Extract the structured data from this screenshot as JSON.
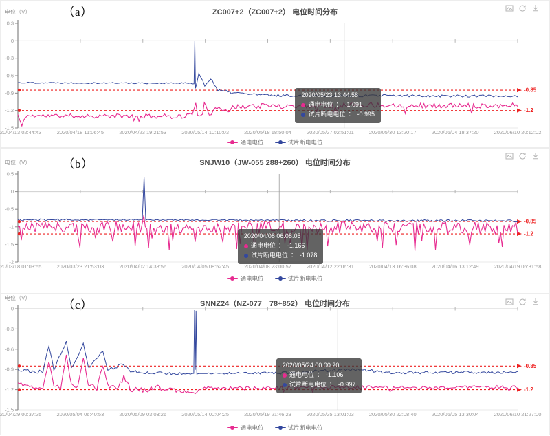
{
  "colon": "：",
  "toolbox": {
    "icons": [
      "save-image-icon",
      "restore-icon",
      "download-icon"
    ]
  },
  "chart_data": [
    {
      "panel_label": "（a）",
      "type": "line",
      "title": "ZC007+2（ZC007+2）  电位时间分布",
      "ylabel": "电位（V）",
      "ylim": [
        -1.5,
        0.3
      ],
      "yticks": [
        0.3,
        0,
        -0.3,
        -0.6,
        -0.9,
        -1.2,
        -1.5
      ],
      "xticklabels": [
        "2020/04/13 02:44:43",
        "2020/04/18 11:06:45",
        "2020/04/23 19:21:53",
        "2020/05/14 10:10:03",
        "2020/05/18 18:50:04",
        "2020/05/27 02:51:01",
        "2020/05/30 13:20:17",
        "2020/06/04 18:37:20",
        "2020/06/10 20:12:02"
      ],
      "grid": "zero-line",
      "legend_position": "bottom-center",
      "thresholds": [
        {
          "value": -0.85,
          "label": "-0.85",
          "color": "#ee2222"
        },
        {
          "value": -1.2,
          "label": "-1.2",
          "color": "#ee2222"
        }
      ],
      "series": [
        {
          "name": "通电电位",
          "color": "#e72b90",
          "seed": 11,
          "spike_prob": 0.02,
          "points": [
            [
              0,
              -1.27,
              0.035
            ],
            [
              0.008,
              -1.47,
              0.02
            ],
            [
              0.016,
              -1.29,
              0.035
            ],
            [
              0.335,
              -1.3,
              0.04
            ],
            [
              0.349,
              -1.26,
              0.05
            ],
            [
              0.356,
              -1.02,
              0.07
            ],
            [
              0.363,
              -1.38,
              0.09
            ],
            [
              0.373,
              -1.1,
              0.07
            ],
            [
              0.383,
              -1.33,
              0.06
            ],
            [
              0.395,
              -1.12,
              0.05
            ],
            [
              0.42,
              -1.19,
              0.05
            ],
            [
              0.45,
              -1.12,
              0.05
            ],
            [
              0.55,
              -1.12,
              0.045
            ],
            [
              0.7,
              -1.1,
              0.045
            ],
            [
              0.85,
              -1.12,
              0.045
            ],
            [
              1,
              -1.11,
              0.04
            ]
          ]
        },
        {
          "name": "试片断电电位",
          "color": "#34489e",
          "seed": 22,
          "spike_prob": 0,
          "points": [
            [
              0,
              -0.72,
              0.012
            ],
            [
              0.345,
              -0.73,
              0.012
            ],
            [
              0.3525,
              -0.74,
              0.004
            ],
            [
              0.354,
              0.0,
              0
            ],
            [
              0.3555,
              -0.82,
              0.01
            ],
            [
              0.362,
              -0.56,
              0.035
            ],
            [
              0.374,
              -0.78,
              0.035
            ],
            [
              0.386,
              -0.63,
              0.03
            ],
            [
              0.4,
              -0.86,
              0.03
            ],
            [
              0.44,
              -0.9,
              0.025
            ],
            [
              0.5,
              -0.94,
              0.022
            ],
            [
              1,
              -0.95,
              0.022
            ]
          ]
        }
      ],
      "tooltip": {
        "time": "2020/05/23 13:44:58",
        "x_frac": 0.555,
        "rows": [
          {
            "label": "通电电位",
            "value": "-1.091"
          },
          {
            "label": "试片断电电位",
            "value": "-0.995"
          }
        ]
      },
      "crosshair_frac": 0.653
    },
    {
      "panel_label": "（b）",
      "type": "line",
      "title": "SNJW10（JW-055 288+260）  电位时间分布",
      "ylabel": "电位（V）",
      "ylim": [
        -2,
        0.5
      ],
      "yticks": [
        0.5,
        0,
        -0.5,
        -1,
        -1.5,
        -2
      ],
      "xticklabels": [
        "2020/03/18 01:03:55",
        "2020/03/23 21:53:03",
        "2020/04/02 14:38:56",
        "2020/04/05 08:52:45",
        "2020/04/08 23:00:57",
        "2020/04/12 22:06:31",
        "2020/04/13 16:36:08",
        "2020/04/16 13:12:49",
        "2020/04/19 06:31:58"
      ],
      "grid": "zero-line",
      "legend_position": "bottom-center",
      "thresholds": [
        {
          "value": -0.85,
          "label": "-0.85",
          "color": "#ee2222"
        },
        {
          "value": -1.2,
          "label": "-1.2",
          "color": "#ee2222"
        }
      ],
      "series": [
        {
          "name": "通电电位",
          "color": "#e72b90",
          "seed": 33,
          "spike_prob": 0.12,
          "points": [
            [
              0,
              -1.0,
              0.16
            ],
            [
              0.245,
              -1.02,
              0.17
            ],
            [
              0.252,
              -0.72,
              0.07
            ],
            [
              0.258,
              -1.05,
              0.17
            ],
            [
              0.5,
              -1.03,
              0.18
            ],
            [
              0.75,
              -1.05,
              0.18
            ],
            [
              1,
              -1.04,
              0.18
            ]
          ]
        },
        {
          "name": "试片断电电位",
          "color": "#34489e",
          "seed": 44,
          "spike_prob": 0,
          "points": [
            [
              0,
              -0.8,
              0.03
            ],
            [
              0.249,
              -0.8,
              0.015
            ],
            [
              0.2525,
              0.42,
              0
            ],
            [
              0.256,
              -0.8,
              0.015
            ],
            [
              0.6,
              -0.82,
              0.03
            ],
            [
              1,
              -0.83,
              0.03
            ]
          ]
        }
      ],
      "tooltip": {
        "time": "2020/04/08 06:08:05",
        "x_frac": 0.44,
        "rows": [
          {
            "label": "通电电位",
            "value": "-1.166"
          },
          {
            "label": "试片断电电位",
            "value": "-1.078"
          }
        ]
      },
      "crosshair_frac": 0.523
    },
    {
      "panel_label": "（c）",
      "type": "line",
      "title": "SNNZ24（NZ-077　78+852）  电位时间分布",
      "ylabel": "电位（V）",
      "ylim": [
        -1.5,
        0
      ],
      "yticks": [
        0,
        -0.3,
        -0.6,
        -0.9,
        -1.2,
        -1.5
      ],
      "xticklabels": [
        "2020/04/29 00:37:25",
        "2020/05/04 06:40:53",
        "2020/05/09 03:03:26",
        "2020/05/14 00:04:25",
        "2020/05/19 21:46:23",
        "2020/05/25 13:01:03",
        "2020/05/30 22:08:40",
        "2020/06/05 13:30:04",
        "2020/06/10 21:27:00"
      ],
      "grid": "zero-line",
      "legend_position": "bottom-center",
      "thresholds": [
        {
          "value": -0.85,
          "label": "-0.85",
          "color": "#ee2222"
        },
        {
          "value": -1.2,
          "label": "-1.2",
          "color": "#ee2222"
        }
      ],
      "series": [
        {
          "name": "通电电位",
          "color": "#e72b90",
          "seed": 55,
          "spike_prob": 0.02,
          "points": [
            [
              0,
              -1.1,
              0.03
            ],
            [
              0.03,
              -1.16,
              0.03
            ],
            [
              0.05,
              -1.17,
              0.02
            ],
            [
              0.062,
              -0.78,
              0.02
            ],
            [
              0.072,
              -1.14,
              0.03
            ],
            [
              0.086,
              -1.17,
              0.02
            ],
            [
              0.097,
              -0.68,
              0.02
            ],
            [
              0.107,
              -1.12,
              0.03
            ],
            [
              0.12,
              -1.16,
              0.02
            ],
            [
              0.131,
              -0.73,
              0.02
            ],
            [
              0.141,
              -1.12,
              0.03
            ],
            [
              0.158,
              -1.18,
              0.03
            ],
            [
              0.17,
              -0.83,
              0.03
            ],
            [
              0.18,
              -1.14,
              0.03
            ],
            [
              0.198,
              -1.17,
              0.04
            ],
            [
              0.212,
              -1.02,
              0.04
            ],
            [
              0.225,
              -1.2,
              0.04
            ],
            [
              0.25,
              -1.21,
              0.04
            ],
            [
              0.28,
              -1.17,
              0.04
            ],
            [
              0.31,
              -1.21,
              0.03
            ],
            [
              0.34,
              -1.22,
              0.03
            ],
            [
              0.355,
              -1.24,
              0.02
            ],
            [
              0.37,
              -1.17,
              0.02
            ],
            [
              0.45,
              -1.18,
              0.025
            ],
            [
              0.6,
              -1.16,
              0.025
            ],
            [
              0.8,
              -1.17,
              0.025
            ],
            [
              1,
              -1.16,
              0.025
            ]
          ]
        },
        {
          "name": "试片断电电位",
          "color": "#34489e",
          "seed": 66,
          "spike_prob": 0,
          "points": [
            [
              0,
              -0.9,
              0.025
            ],
            [
              0.05,
              -0.94,
              0.025
            ],
            [
              0.062,
              -0.55,
              0.02
            ],
            [
              0.072,
              -0.9,
              0.025
            ],
            [
              0.097,
              -0.48,
              0.02
            ],
            [
              0.107,
              -0.88,
              0.025
            ],
            [
              0.131,
              -0.53,
              0.02
            ],
            [
              0.141,
              -0.88,
              0.025
            ],
            [
              0.17,
              -0.63,
              0.02
            ],
            [
              0.18,
              -0.9,
              0.025
            ],
            [
              0.212,
              -0.83,
              0.03
            ],
            [
              0.225,
              -0.93,
              0.025
            ],
            [
              0.3,
              -0.96,
              0.02
            ],
            [
              0.352,
              -0.96,
              0.01
            ],
            [
              0.3535,
              -0.02,
              0
            ],
            [
              0.355,
              -0.9,
              0.005
            ],
            [
              0.3565,
              -0.03,
              0
            ],
            [
              0.358,
              -0.96,
              0.01
            ],
            [
              0.55,
              -0.95,
              0.02
            ],
            [
              0.68,
              -0.89,
              0.025
            ],
            [
              0.74,
              -0.95,
              0.02
            ],
            [
              1,
              -0.94,
              0.02
            ]
          ]
        }
      ],
      "tooltip": {
        "time": "2020/05/24 00:00:20",
        "x_frac": 0.517,
        "rows": [
          {
            "label": "通电电位",
            "value": "-1.106"
          },
          {
            "label": "试片断电电位",
            "value": "-0.997"
          }
        ]
      },
      "crosshair_frac": 0.64
    }
  ]
}
